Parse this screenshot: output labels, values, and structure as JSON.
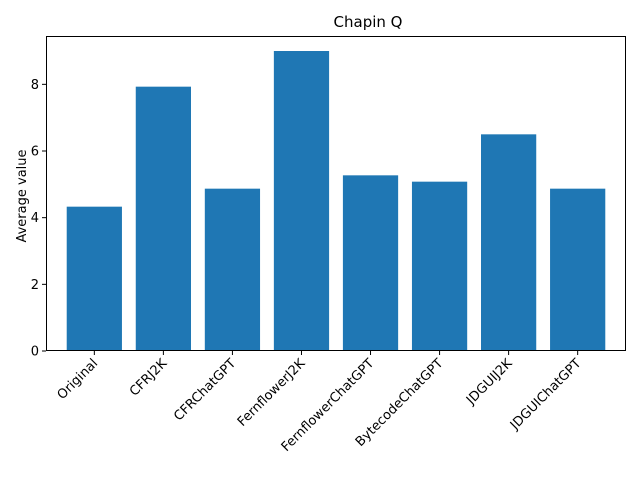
{
  "chart_data": {
    "type": "bar",
    "title": "Chapin Q",
    "xlabel": "",
    "ylabel": "Average value",
    "categories": [
      "Original",
      "CFRJ2K",
      "CFRChatGPT",
      "FernflowerJ2K",
      "FernflowerChatGPT",
      "BytecodeChatGPT",
      "JDGUIJ2K",
      "JDGUIChatGPT"
    ],
    "values": [
      4.33,
      7.93,
      4.87,
      9.0,
      5.27,
      5.08,
      6.5,
      4.87
    ],
    "ylim": [
      0,
      9.45
    ],
    "yticks": [
      0,
      2,
      4,
      6,
      8
    ],
    "grid": false,
    "legend": "none",
    "bar_color": "#1f77b4"
  }
}
